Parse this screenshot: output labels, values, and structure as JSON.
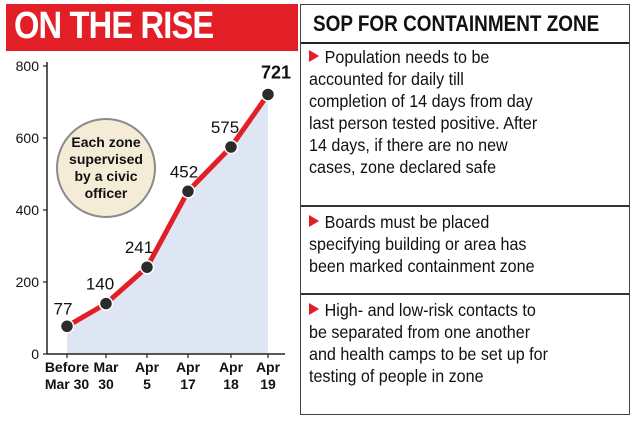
{
  "left_header": {
    "title": "ON THE RISE"
  },
  "callout": {
    "text": "Each zone supervised by a civic officer"
  },
  "chart_data": {
    "type": "area",
    "title": "ON THE RISE",
    "categories": [
      [
        "Before",
        "Mar 30"
      ],
      [
        "Mar",
        "30"
      ],
      [
        "Apr",
        "5"
      ],
      [
        "Apr",
        "17"
      ],
      [
        "Apr",
        "18"
      ],
      [
        "Apr",
        "19"
      ]
    ],
    "values": [
      77,
      140,
      241,
      452,
      575,
      721
    ],
    "ylim": [
      0,
      800
    ],
    "yticks": [
      0,
      200,
      400,
      600,
      800
    ],
    "xlabel": "",
    "ylabel": "",
    "grid": false,
    "colors": {
      "line": "#e21f26",
      "fill": "#dfe6f3",
      "point": "#2b2b2b"
    }
  },
  "sop": {
    "title": "SOP FOR CONTAINMENT ZONE",
    "items": [
      {
        "lines": [
          "Population needs to be",
          "accounted for daily till",
          "completion of 14 days from day",
          "last person tested positive. After",
          "14 days, if there are no new",
          "cases, zone declared safe"
        ]
      },
      {
        "lines": [
          "Boards must be placed",
          "specifying building or area has",
          "been marked containment zone"
        ]
      },
      {
        "lines": [
          "High- and low-risk contacts to",
          "be separated from one another",
          "and health camps to be set up for",
          "testing of people in zone"
        ]
      }
    ]
  },
  "colors": {
    "accent": "#e21f26"
  }
}
